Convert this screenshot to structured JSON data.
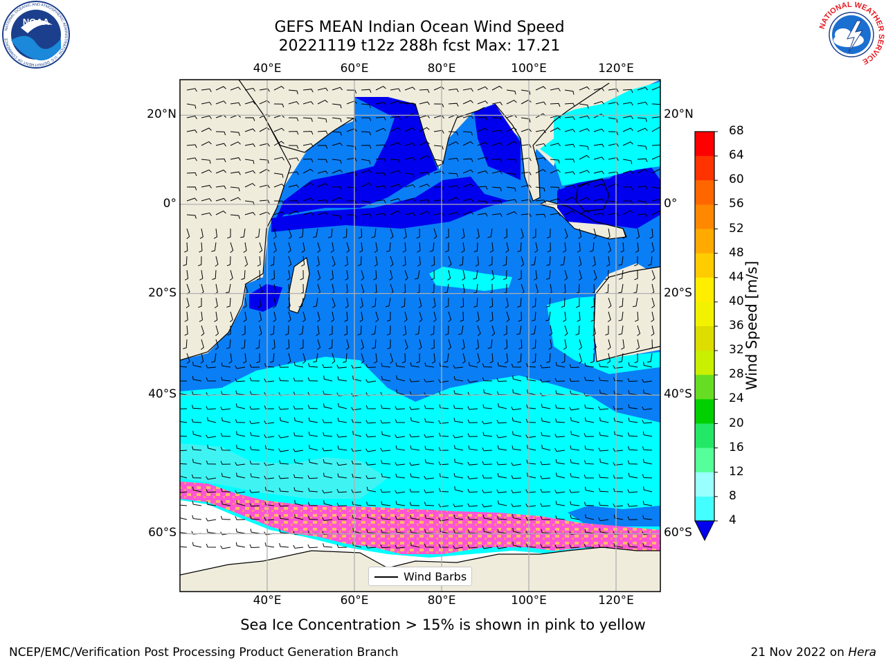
{
  "header": {
    "title_line1": "GEFS MEAN Indian Ocean Wind Speed",
    "title_line2": "20221119 t12z 288h fcst   Max: 17.21"
  },
  "map": {
    "lon_ticks_top": [
      "40°E",
      "60°E",
      "80°E",
      "100°E",
      "120°E"
    ],
    "lon_ticks_bottom": [
      "40°E",
      "60°E",
      "80°E",
      "100°E",
      "120°E"
    ],
    "lat_ticks_left": [
      "20°N",
      "0°",
      "20°S",
      "40°S",
      "60°S"
    ],
    "lat_ticks_right": [
      "20°N",
      "0°",
      "20°S",
      "40°S",
      "60°S"
    ],
    "lon_values": [
      40,
      60,
      80,
      100,
      120
    ],
    "lat_values": [
      20,
      0,
      -20,
      -40,
      -60
    ],
    "legend_label": "Wind Barbs",
    "colors": {
      "land": "#efecdc",
      "ocean_4_8": "#0a7ef5",
      "ocean_below_4": "#0000ee",
      "ocean_8_12": "#00ffff",
      "ocean_12_16": "#3ff3f3",
      "sea_ice_low": "#ff33cc",
      "sea_ice_high": "#ffcc66"
    }
  },
  "colorbar": {
    "label": "Wind Speed [m/s]",
    "ticks": [
      "68",
      "64",
      "60",
      "56",
      "52",
      "48",
      "44",
      "40",
      "36",
      "32",
      "28",
      "24",
      "20",
      "16",
      "12",
      "8",
      "4"
    ],
    "colors": [
      "#ff0000",
      "#ff3300",
      "#ff6600",
      "#ff8800",
      "#ffaa00",
      "#ffcc00",
      "#ffee00",
      "#f2f200",
      "#dddd00",
      "#c8f000",
      "#66dd22",
      "#00d000",
      "#22e866",
      "#55ff99",
      "#99ffff",
      "#44ffff",
      "#00ffff",
      "#0a7ef5"
    ],
    "extend_color": "#0000ee"
  },
  "caption": "Sea Ice Concentration > 15% is shown in pink to yellow",
  "footer": {
    "left": "NCEP/EMC/Verification Post Processing Product Generation Branch",
    "right_date": "21 Nov 2022 on",
    "right_host": "Hera"
  },
  "logos": {
    "left": "noaa-logo",
    "left_text": "NATIONAL OCEANIC AND ATMOSPHERIC ADMINISTRATION · U.S. DEPARTMENT OF COMMERCE",
    "left_center": "NOAA",
    "right": "nws-logo",
    "right_text": "NATIONAL WEATHER SERVICE"
  }
}
